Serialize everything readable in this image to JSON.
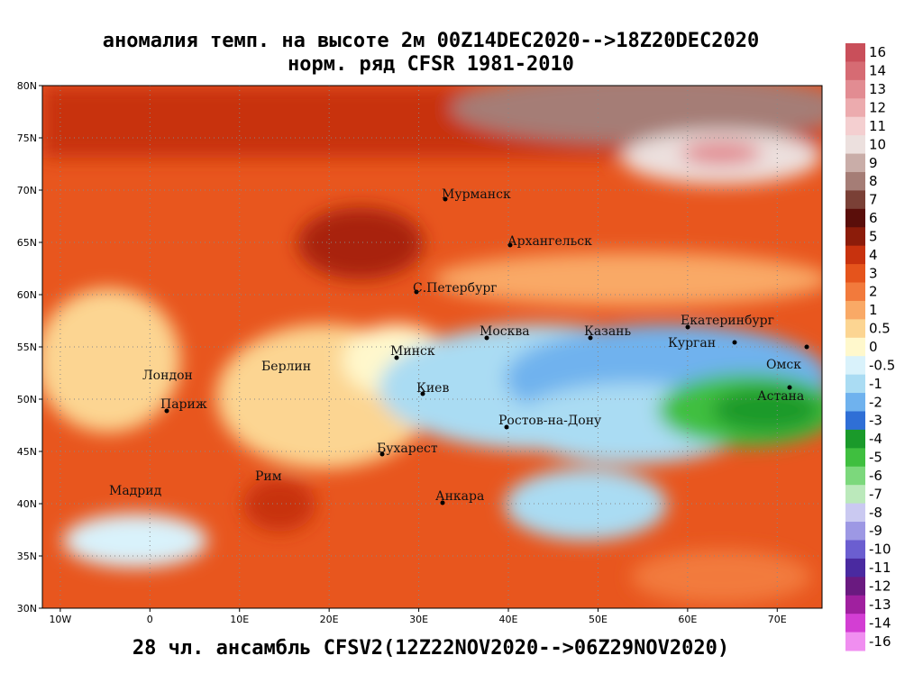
{
  "header": {
    "title": "аномалия темп. на высоте 2м 00Z14DEC2020-->18Z20DEC2020",
    "subtitle": "норм. ряд CFSR 1981-2010"
  },
  "footer": "28 чл. ансамбль CFSV2(12Z22NOV2020-->06Z29NOV2020)",
  "map": {
    "lat_ticks": [
      {
        "value": 80,
        "label": "80N"
      },
      {
        "value": 75,
        "label": "75N"
      },
      {
        "value": 70,
        "label": "70N"
      },
      {
        "value": 65,
        "label": "65N"
      },
      {
        "value": 60,
        "label": "60N"
      },
      {
        "value": 55,
        "label": "55N"
      },
      {
        "value": 50,
        "label": "50N"
      },
      {
        "value": 45,
        "label": "45N"
      },
      {
        "value": 40,
        "label": "40N"
      },
      {
        "value": 35,
        "label": "35N"
      },
      {
        "value": 30,
        "label": "30N"
      }
    ],
    "lon_ticks": [
      {
        "value": -10,
        "label": "10W"
      },
      0,
      {
        "value": 10,
        "label": "10E"
      },
      {
        "value": 20,
        "label": "20E"
      },
      {
        "value": 30,
        "label": "30E"
      },
      {
        "value": 40,
        "label": "40E"
      },
      {
        "value": 50,
        "label": "50E"
      },
      {
        "value": 60,
        "label": "60E"
      },
      {
        "value": 70,
        "label": "70E"
      }
    ],
    "cities": [
      "Мурманск",
      "Архангельск",
      "С.Петербург",
      "Москва",
      "Казань",
      "Екатеринбург",
      "Курган",
      "Омск",
      "Астана",
      "Минск",
      "Берлин",
      "Лондон",
      "Париж",
      "Киев",
      "Ростов-на-Дону",
      "Бухарест",
      "Рим",
      "Мадрид",
      "Анкара"
    ]
  },
  "colorbar": {
    "levels": [
      16,
      14,
      13,
      12,
      11,
      10,
      9,
      8,
      7,
      6,
      5,
      4,
      3,
      2,
      1,
      0.5,
      0,
      -0.5,
      -1,
      -2,
      -3,
      -4,
      -5,
      -6,
      -7,
      -8,
      -9,
      -10,
      -11,
      -12,
      -13,
      -14,
      -16
    ],
    "colors": [
      "#c94f5a",
      "#d66b73",
      "#e28c92",
      "#ecabae",
      "#f4cfd0",
      "#ece0de",
      "#c9ada8",
      "#a57d76",
      "#7a4036",
      "#5a0e0a",
      "#8c1c0a",
      "#c8320e",
      "#e5541c",
      "#f27a3c",
      "#f9a966",
      "#fcd592",
      "#fff8cc",
      "#d9f2fb",
      "#aadcf3",
      "#6fb2ee",
      "#2f6fd6",
      "#1a9a2a",
      "#3fbf3f",
      "#7cd87c",
      "#bbe9bb",
      "#cac9f1",
      "#9d98e4",
      "#6b5ed0",
      "#4a2aa0",
      "#6a1a80",
      "#a0209f",
      "#d33ed3",
      "#f08ef0"
    ]
  }
}
